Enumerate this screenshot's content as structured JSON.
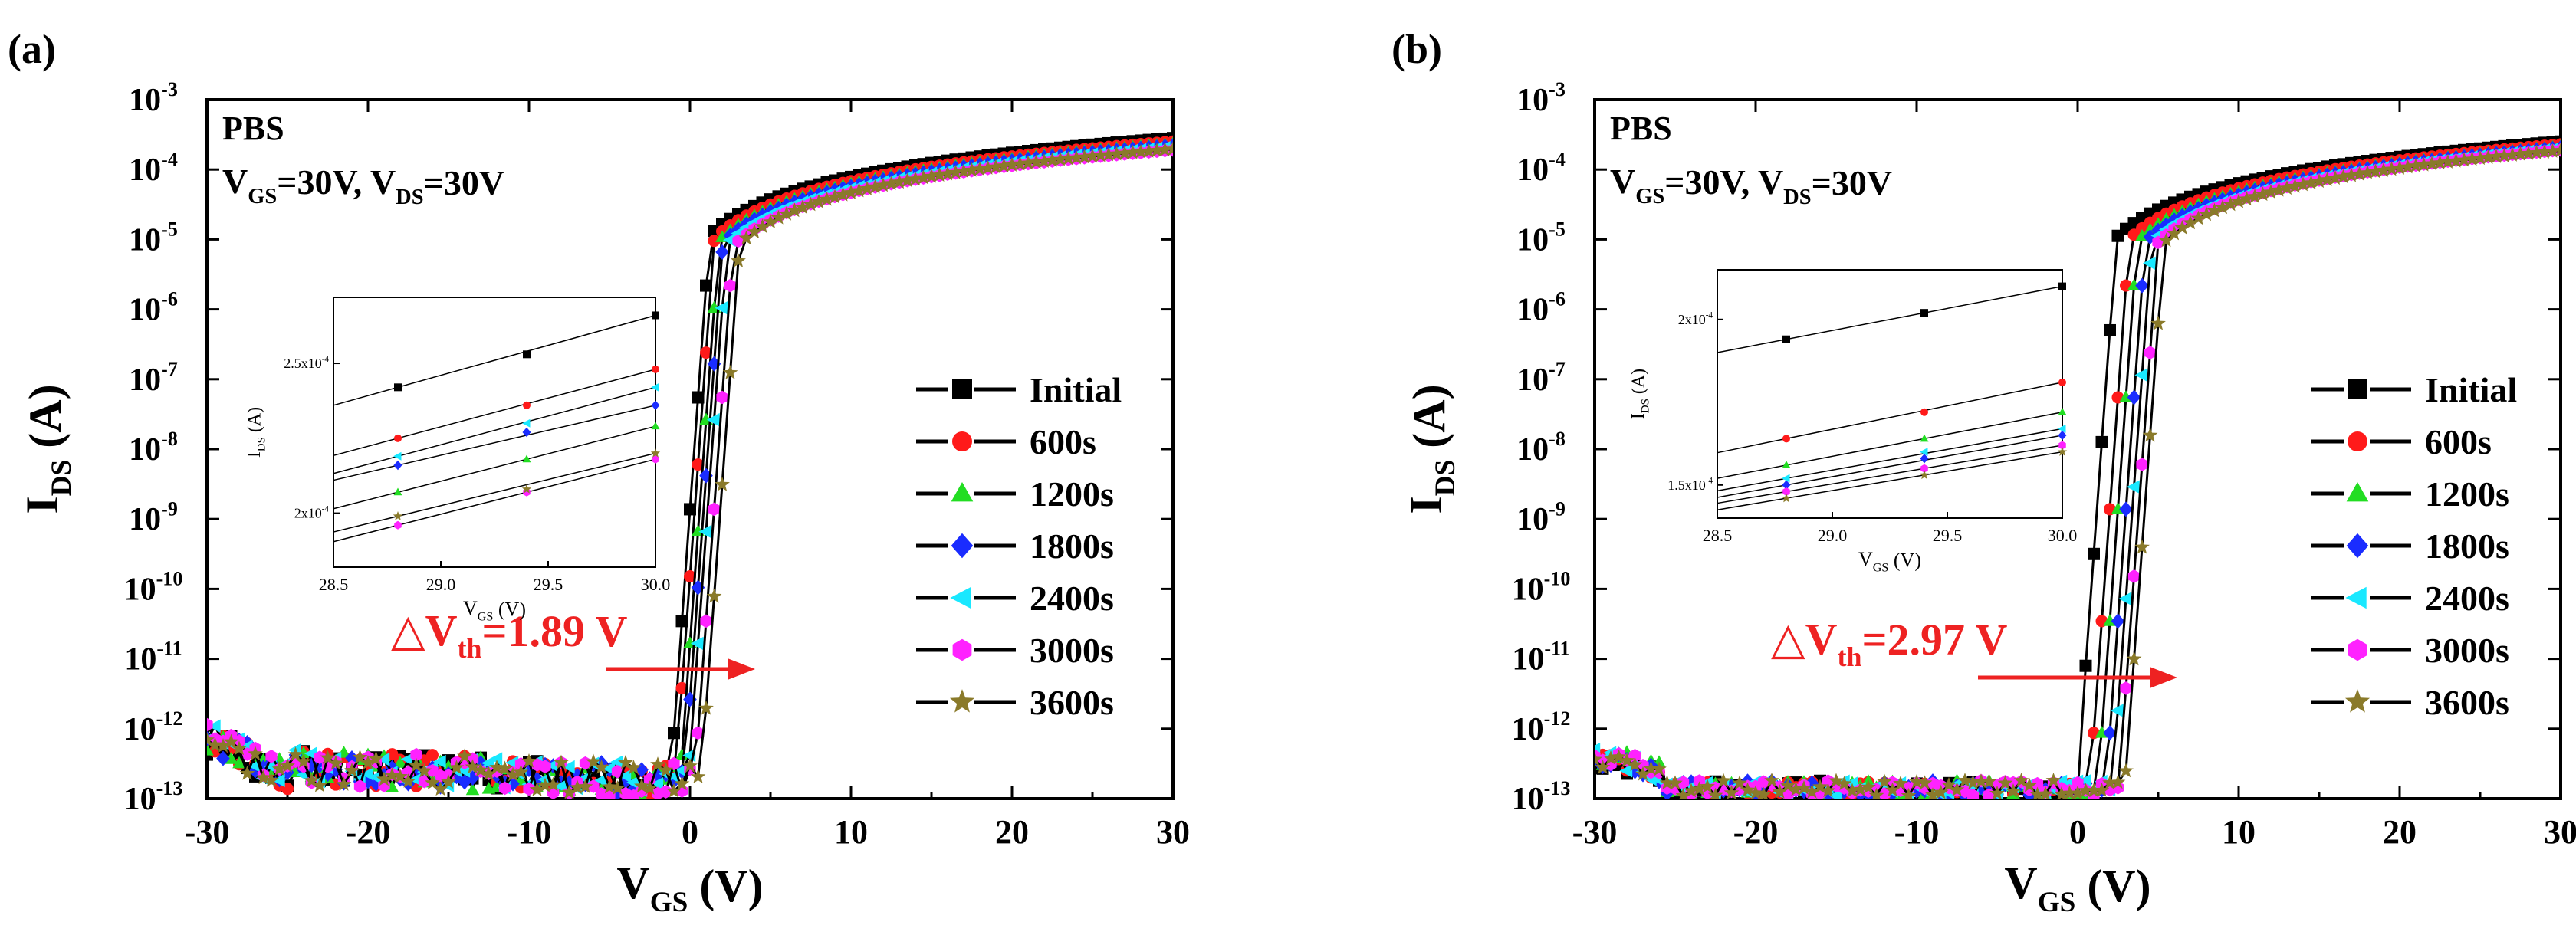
{
  "colors": {
    "Initial": "#000000",
    "600s": "#ff1a1a",
    "1200s": "#22dd22",
    "1800s": "#1a2cff",
    "2400s": "#19e8ff",
    "3000s": "#ff22ff",
    "3600s": "#8a7a2a",
    "annotation": "#ee2222"
  },
  "chart_data": [
    {
      "type": "line",
      "panel_label": "(a)",
      "title": "",
      "xlabel_main": "V",
      "xlabel_sub": "GS",
      "xlabel_tail": " (V)",
      "ylabel_main": "I",
      "ylabel_sub": "DS",
      "ylabel_tail": " (A)",
      "xlim": [
        -30,
        30
      ],
      "ylim_log10": [
        -13,
        -3
      ],
      "x_ticks": [
        "-30",
        "-20",
        "-10",
        "0",
        "10",
        "20",
        "30"
      ],
      "y_ticks": [
        "10-13",
        "10-12",
        "10-11",
        "10-10",
        "10-9",
        "10-8",
        "10-7",
        "10-6",
        "10-5",
        "10-4",
        "10-3"
      ],
      "text_line1": "PBS",
      "text_line2_a": "V",
      "text_line2_a_sub": "GS",
      "text_line2_b": "=30V, V",
      "text_line2_b_sub": "DS",
      "text_line2_c": "=30V",
      "delta_prefix": "△V",
      "delta_sub": "th",
      "delta_value": "=1.89 V",
      "delta_vth_V": 1.89,
      "legend": [
        "Initial",
        "600s",
        "1200s",
        "1800s",
        "2400s",
        "3000s",
        "3600s"
      ],
      "series": [
        {
          "name": "Initial",
          "vth": -1.2,
          "ion_log10_at_30V": -3.55
        },
        {
          "name": "600s",
          "vth": -0.9,
          "ion_log10_at_30V": -3.6
        },
        {
          "name": "1200s",
          "vth": -0.6,
          "ion_log10_at_30V": -3.63
        },
        {
          "name": "1800s",
          "vth": -0.35,
          "ion_log10_at_30V": -3.66
        },
        {
          "name": "2400s",
          "vth": -0.1,
          "ion_log10_at_30V": -3.68
        },
        {
          "name": "3000s",
          "vth": 0.3,
          "ion_log10_at_30V": -3.72
        },
        {
          "name": "3600s",
          "vth": 0.69,
          "ion_log10_at_30V": -3.71
        }
      ],
      "inset": {
        "xlabel_main": "V",
        "xlabel_sub": "GS",
        "xlabel_tail": " (V)",
        "ylabel_main": "I",
        "ylabel_sub": "DS",
        "ylabel_tail": " (A)",
        "xlim": [
          28.5,
          30.0
        ],
        "x_ticks": [
          "28.5",
          "29.0",
          "29.5",
          "30.0"
        ],
        "ylim": [
          0.000182,
          0.000272
        ],
        "y_ticks": [
          {
            "label": "2.5x10",
            "exp": "-4",
            "value": 0.00025
          },
          {
            "label": "2x10",
            "exp": "-4",
            "value": 0.0002
          }
        ],
        "x_points": [
          28.8,
          29.4,
          30.0
        ],
        "series": [
          {
            "name": "Initial",
            "values": [
              0.000242,
              0.000253,
              0.000266
            ]
          },
          {
            "name": "600s",
            "values": [
              0.000225,
              0.000236,
              0.000248
            ]
          },
          {
            "name": "1200s",
            "values": [
              0.000207,
              0.000218,
              0.000229
            ]
          },
          {
            "name": "1800s",
            "values": [
              0.000216,
              0.000227,
              0.000236
            ]
          },
          {
            "name": "2400s",
            "values": [
              0.000219,
              0.00023,
              0.000242
            ]
          },
          {
            "name": "3000s",
            "values": [
              0.000196,
              0.000207,
              0.000218
            ]
          },
          {
            "name": "3600s",
            "values": [
              0.000199,
              0.000208,
              0.00022
            ]
          }
        ]
      }
    },
    {
      "type": "line",
      "panel_label": "(b)",
      "title": "",
      "xlabel_main": "V",
      "xlabel_sub": "GS",
      "xlabel_tail": " (V)",
      "ylabel_main": "I",
      "ylabel_sub": "DS",
      "ylabel_tail": " (A)",
      "xlim": [
        -30,
        30
      ],
      "ylim_log10": [
        -13,
        -3
      ],
      "x_ticks": [
        "-30",
        "-20",
        "-10",
        "0",
        "10",
        "20",
        "30"
      ],
      "y_ticks": [
        "10-13",
        "10-12",
        "10-11",
        "10-10",
        "10-9",
        "10-8",
        "10-7",
        "10-6",
        "10-5",
        "10-4",
        "10-3"
      ],
      "text_line1": "PBS",
      "text_line2_a": "V",
      "text_line2_a_sub": "GS",
      "text_line2_b": "=30V, V",
      "text_line2_b_sub": "DS",
      "text_line2_c": "=30V",
      "delta_prefix": "△V",
      "delta_sub": "th",
      "delta_value": "=2.97 V",
      "delta_vth_V": 2.97,
      "legend": [
        "Initial",
        "600s",
        "1200s",
        "1800s",
        "2400s",
        "3000s",
        "3600s"
      ],
      "series": [
        {
          "name": "Initial",
          "vth": 0.0,
          "ion_log10_at_30V": -3.6
        },
        {
          "name": "600s",
          "vth": 0.8,
          "ion_log10_at_30V": -3.64
        },
        {
          "name": "1200s",
          "vth": 1.3,
          "ion_log10_at_30V": -3.67
        },
        {
          "name": "1800s",
          "vth": 1.8,
          "ion_log10_at_30V": -3.69
        },
        {
          "name": "2400s",
          "vth": 2.2,
          "ion_log10_at_30V": -3.7
        },
        {
          "name": "3000s",
          "vth": 2.6,
          "ion_log10_at_30V": -3.72
        },
        {
          "name": "3600s",
          "vth": 2.97,
          "ion_log10_at_30V": -3.73
        }
      ],
      "inset": {
        "xlabel_main": "V",
        "xlabel_sub": "GS",
        "xlabel_tail": " (V)",
        "ylabel_main": "I",
        "ylabel_sub": "DS",
        "ylabel_tail": " (A)",
        "xlim": [
          28.5,
          30.0
        ],
        "x_ticks": [
          "28.5",
          "29.0",
          "29.5",
          "30.0"
        ],
        "ylim": [
          0.00014,
          0.000215
        ],
        "y_ticks": [
          {
            "label": "2x10",
            "exp": "-4",
            "value": 0.0002
          },
          {
            "label": "1.5x10",
            "exp": "-4",
            "value": 0.00015
          }
        ],
        "x_points": [
          28.8,
          29.4,
          30.0
        ],
        "series": [
          {
            "name": "Initial",
            "values": [
              0.000194,
              0.000202,
              0.00021
            ]
          },
          {
            "name": "600s",
            "values": [
              0.000164,
              0.000172,
              0.000181
            ]
          },
          {
            "name": "1200s",
            "values": [
              0.000156,
              0.000164,
              0.000172
            ]
          },
          {
            "name": "1800s",
            "values": [
              0.00015,
              0.000158,
              0.000165
            ]
          },
          {
            "name": "2400s",
            "values": [
              0.000152,
              0.00016,
              0.000167
            ]
          },
          {
            "name": "3000s",
            "values": [
              0.000148,
              0.000155,
              0.000162
            ]
          },
          {
            "name": "3600s",
            "values": [
              0.000146,
              0.000153,
              0.00016
            ]
          }
        ]
      }
    }
  ]
}
